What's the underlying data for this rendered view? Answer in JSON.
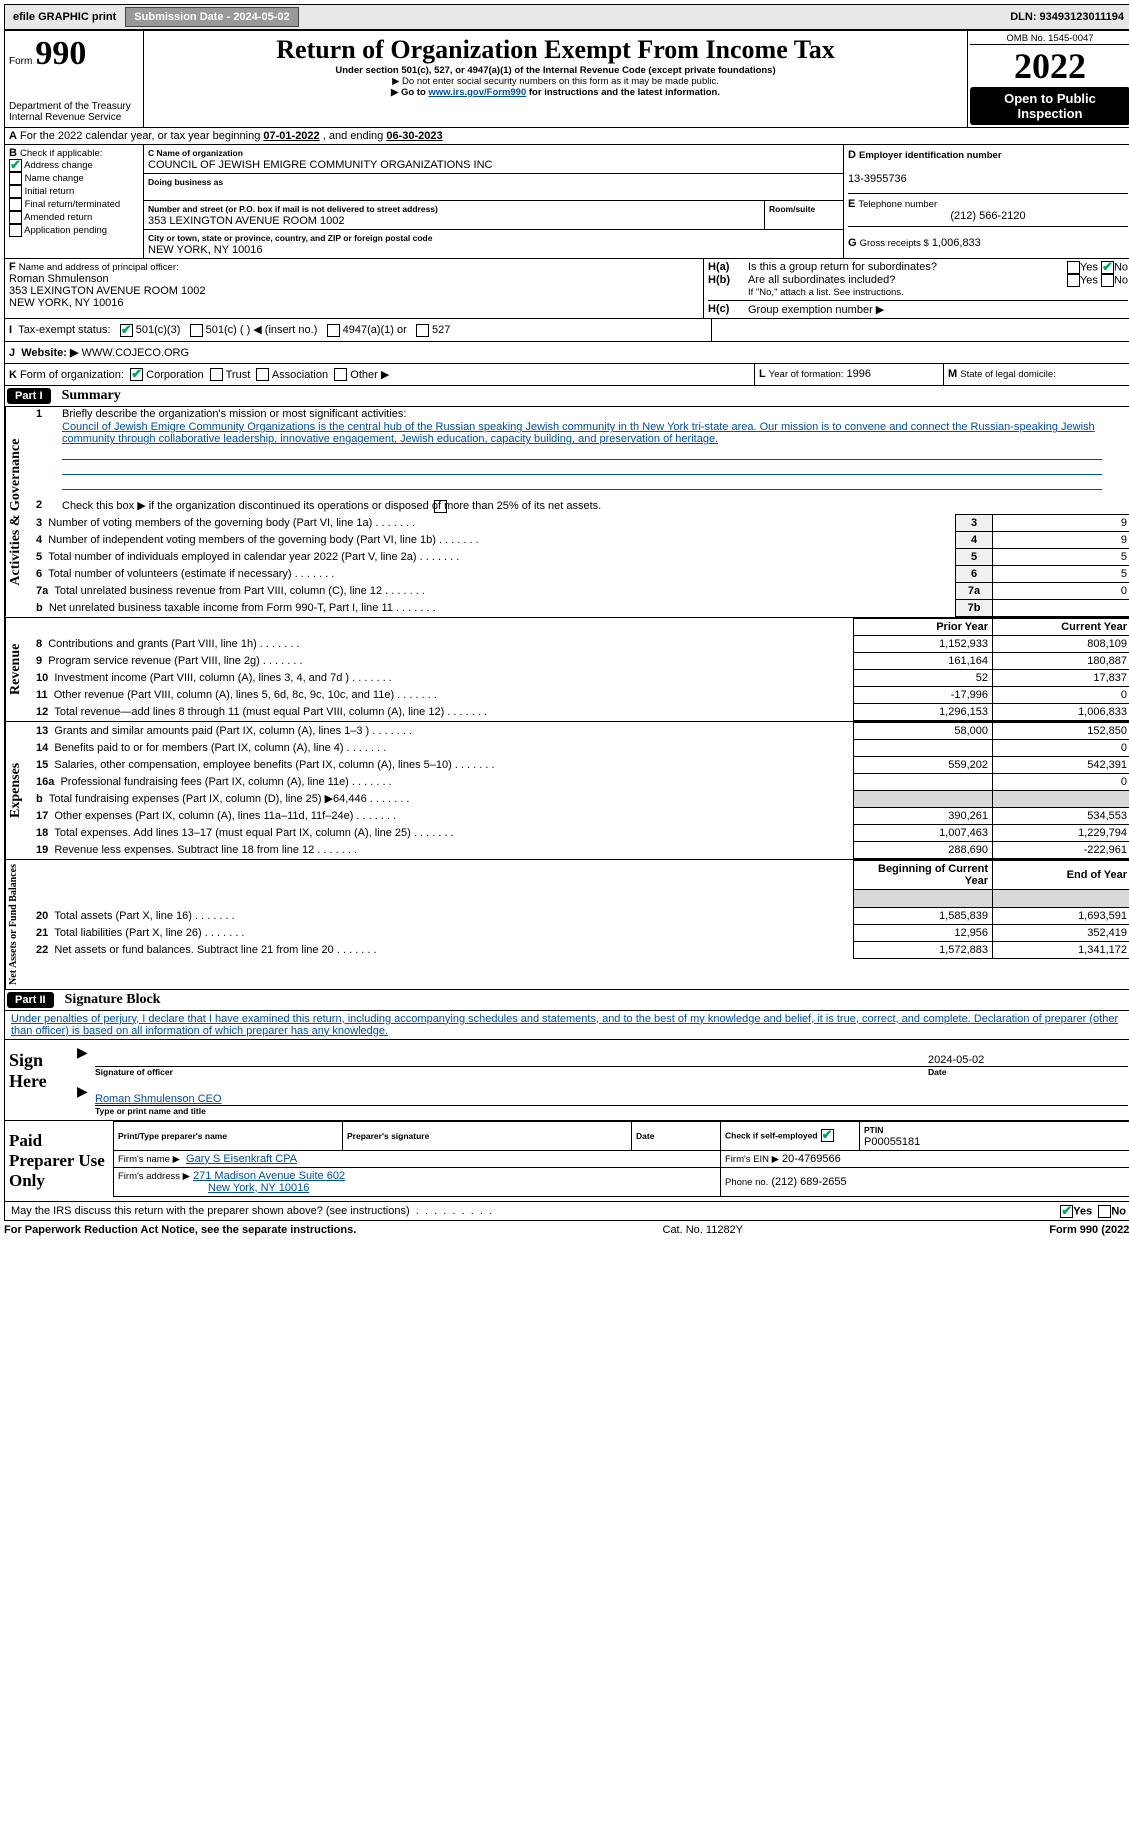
{
  "topbar": {
    "efile": "efile GRAPHIC print",
    "submission_label": "Submission Date - 2024-05-02",
    "dln_label": "DLN: 93493123011194"
  },
  "header": {
    "form_prefix": "Form",
    "form_number": "990",
    "dept": "Department of the Treasury",
    "irs": "Internal Revenue Service",
    "title": "Return of Organization Exempt From Income Tax",
    "subtitle": "Under section 501(c), 527, or 4947(a)(1) of the Internal Revenue Code (except private foundations)",
    "warn": "▶ Do not enter social security numbers on this form as it may be made public.",
    "goto_pre": "▶ Go to ",
    "goto_link": "www.irs.gov/Form990",
    "goto_post": " for instructions and the latest information.",
    "omb": "OMB No. 1545-0047",
    "year": "2022",
    "open": "Open to Public Inspection"
  },
  "periodA": {
    "text_pre": "For the 2022 calendar year, or tax year beginning ",
    "begin": "07-01-2022",
    "mid": " , and ending ",
    "end": "06-30-2023"
  },
  "checkB": {
    "label": "Check if applicable:",
    "items": [
      "Address change",
      "Name change",
      "Initial return",
      "Final return/terminated",
      "Amended return",
      "Application pending"
    ],
    "checked": [
      true,
      false,
      false,
      false,
      false,
      false
    ],
    "item_b": "B"
  },
  "orgC": {
    "c": "C",
    "name_label": "Name of organization",
    "name": "COUNCIL OF JEWISH EMIGRE COMMUNITY ORGANIZATIONS INC",
    "dba_label": "Doing business as",
    "addr_label": "Number and street (or P.O. box if mail is not delivered to street address)",
    "room_label": "Room/suite",
    "addr": "353 LEXINGTON AVENUE ROOM 1002",
    "city_label": "City or town, state or province, country, and ZIP or foreign postal code",
    "city": "NEW YORK, NY  10016"
  },
  "einD": {
    "d": "D",
    "label": "Employer identification number",
    "value": "13-3955736",
    "e": "E",
    "tel_label": "Telephone number",
    "tel": "(212) 566-2120",
    "g": "G",
    "gross_label": "Gross receipts $",
    "gross": "1,006,833"
  },
  "officerF": {
    "f": "F",
    "label": "Name and address of principal officer:",
    "name": "Roman Shmulenson",
    "addr1": "353 LEXINGTON AVENUE ROOM 1002",
    "addr2": "NEW YORK, NY  10016"
  },
  "groupH": {
    "ha": "H(a)",
    "ha_txt": "Is this a group return for subordinates?",
    "hb": "H(b)",
    "hb_txt": "Are all subordinates included?",
    "hb_note": "If \"No,\" attach a list. See instructions.",
    "hc": "H(c)",
    "hc_txt": "Group exemption number ▶",
    "yes": "Yes",
    "no": "No"
  },
  "statusI": {
    "i": "I",
    "label": "Tax-exempt status:",
    "c3": "501(c)(3)",
    "c": "501(c) (   ) ◀ (insert no.)",
    "a1": "4947(a)(1) or",
    "five27": "527"
  },
  "webJ": {
    "j": "J",
    "label": "Website: ▶",
    "value": "WWW.COJECO.ORG"
  },
  "formK": {
    "k": "K",
    "label": "Form of organization:",
    "corp": "Corporation",
    "trust": "Trust",
    "assoc": "Association",
    "other": "Other ▶"
  },
  "yearL": {
    "l": "L",
    "label": "Year of formation:",
    "value": "1996"
  },
  "domM": {
    "m": "M",
    "label": "State of legal domicile:",
    "value": ""
  },
  "part1": {
    "header": "Part I",
    "title": "Summary",
    "l1_label": "Briefly describe the organization's mission or most significant activities:",
    "l1_text": "Council of Jewish Emigre Community Organizations is the central hub of the Russian speaking Jewish community in th New York tri-state area. Our mission is to convene and connect the Russian-speaking Jewish community through collaborative leadership, innovative engagement, Jewish education, capacity building, and preservation of heritage.",
    "l2": "Check this box ▶        if the organization discontinued its operations or disposed of more than 25% of its net assets.",
    "rows_gov": [
      {
        "n": "3",
        "t": "Number of voting members of the governing body (Part VI, line 1a)",
        "c": "3",
        "v": "9"
      },
      {
        "n": "4",
        "t": "Number of independent voting members of the governing body (Part VI, line 1b)",
        "c": "4",
        "v": "9"
      },
      {
        "n": "5",
        "t": "Total number of individuals employed in calendar year 2022 (Part V, line 2a)",
        "c": "5",
        "v": "5"
      },
      {
        "n": "6",
        "t": "Total number of volunteers (estimate if necessary)",
        "c": "6",
        "v": "5"
      },
      {
        "n": "7a",
        "t": "Total unrelated business revenue from Part VIII, column (C), line 12",
        "c": "7a",
        "v": "0"
      },
      {
        "n": "b",
        "t": "Net unrelated business taxable income from Form 990-T, Part I, line 11",
        "c": "7b",
        "v": ""
      }
    ],
    "head_prior": "Prior Year",
    "head_curr": "Current Year",
    "rev": [
      {
        "n": "8",
        "t": "Contributions and grants (Part VIII, line 1h)",
        "p": "1,152,933",
        "c": "808,109"
      },
      {
        "n": "9",
        "t": "Program service revenue (Part VIII, line 2g)",
        "p": "161,164",
        "c": "180,887"
      },
      {
        "n": "10",
        "t": "Investment income (Part VIII, column (A), lines 3, 4, and 7d )",
        "p": "52",
        "c": "17,837"
      },
      {
        "n": "11",
        "t": "Other revenue (Part VIII, column (A), lines 5, 6d, 8c, 9c, 10c, and 11e)",
        "p": "-17,996",
        "c": "0"
      },
      {
        "n": "12",
        "t": "Total revenue—add lines 8 through 11 (must equal Part VIII, column (A), line 12)",
        "p": "1,296,153",
        "c": "1,006,833"
      }
    ],
    "exp": [
      {
        "n": "13",
        "t": "Grants and similar amounts paid (Part IX, column (A), lines 1–3 )",
        "p": "58,000",
        "c": "152,850"
      },
      {
        "n": "14",
        "t": "Benefits paid to or for members (Part IX, column (A), line 4)",
        "p": "",
        "c": "0"
      },
      {
        "n": "15",
        "t": "Salaries, other compensation, employee benefits (Part IX, column (A), lines 5–10)",
        "p": "559,202",
        "c": "542,391"
      },
      {
        "n": "16a",
        "t": "Professional fundraising fees (Part IX, column (A), line 11e)",
        "p": "",
        "c": "0"
      },
      {
        "n": "b",
        "t": "Total fundraising expenses (Part IX, column (D), line 25) ▶64,446",
        "p": "__shade__",
        "c": "__shade__"
      },
      {
        "n": "17",
        "t": "Other expenses (Part IX, column (A), lines 11a–11d, 11f–24e)",
        "p": "390,261",
        "c": "534,553"
      },
      {
        "n": "18",
        "t": "Total expenses. Add lines 13–17 (must equal Part IX, column (A), line 25)",
        "p": "1,007,463",
        "c": "1,229,794"
      },
      {
        "n": "19",
        "t": "Revenue less expenses. Subtract line 18 from line 12",
        "p": "288,690",
        "c": "-222,961"
      }
    ],
    "head_begin": "Beginning of Current Year",
    "head_end": "End of Year",
    "net": [
      {
        "n": "20",
        "t": "Total assets (Part X, line 16)",
        "p": "1,585,839",
        "c": "1,693,591"
      },
      {
        "n": "21",
        "t": "Total liabilities (Part X, line 26)",
        "p": "12,956",
        "c": "352,419"
      },
      {
        "n": "22",
        "t": "Net assets or fund balances. Subtract line 21 from line 20",
        "p": "1,572,883",
        "c": "1,341,172"
      }
    ],
    "vlabel_gov": "Activities & Governance",
    "vlabel_rev": "Revenue",
    "vlabel_exp": "Expenses",
    "vlabel_net": "Net Assets or Fund Balances"
  },
  "part2": {
    "header": "Part II",
    "title": "Signature Block",
    "decl": "Under penalties of perjury, I declare that I have examined this return, including accompanying schedules and statements, and to the best of my knowledge and belief, it is true, correct, and complete. Declaration of preparer (other than officer) is based on all information of which preparer has any knowledge.",
    "sign": "Sign Here",
    "sig_officer": "Signature of officer",
    "date": "Date",
    "sig_date": "2024-05-02",
    "sig_name": "Roman Shmulenson  CEO",
    "type_name": "Type or print name and title",
    "paid": "Paid Preparer Use Only",
    "prep_name_label": "Print/Type preparer's name",
    "prep_sig_label": "Preparer's signature",
    "prep_date_label": "Date",
    "check_self": "Check         if self-employed",
    "ptin_label": "PTIN",
    "ptin": "P00055181",
    "firm_name_label": "Firm's name    ▶",
    "firm_name": "Gary S Eisenkraft CPA",
    "firm_ein_label": "Firm's EIN ▶",
    "firm_ein": "20-4769566",
    "firm_addr_label": "Firm's address ▶",
    "firm_addr1": "271 Madison Avenue Suite 602",
    "firm_addr2": "New York, NY  10016",
    "phone_label": "Phone no.",
    "phone": "(212) 689-2655",
    "may_irs": "May the IRS discuss this return with the preparer shown above? (see instructions)"
  },
  "footer": {
    "pra": "For Paperwork Reduction Act Notice, see the separate instructions.",
    "cat": "Cat. No. 11282Y",
    "form": "Form 990 (2022)"
  }
}
